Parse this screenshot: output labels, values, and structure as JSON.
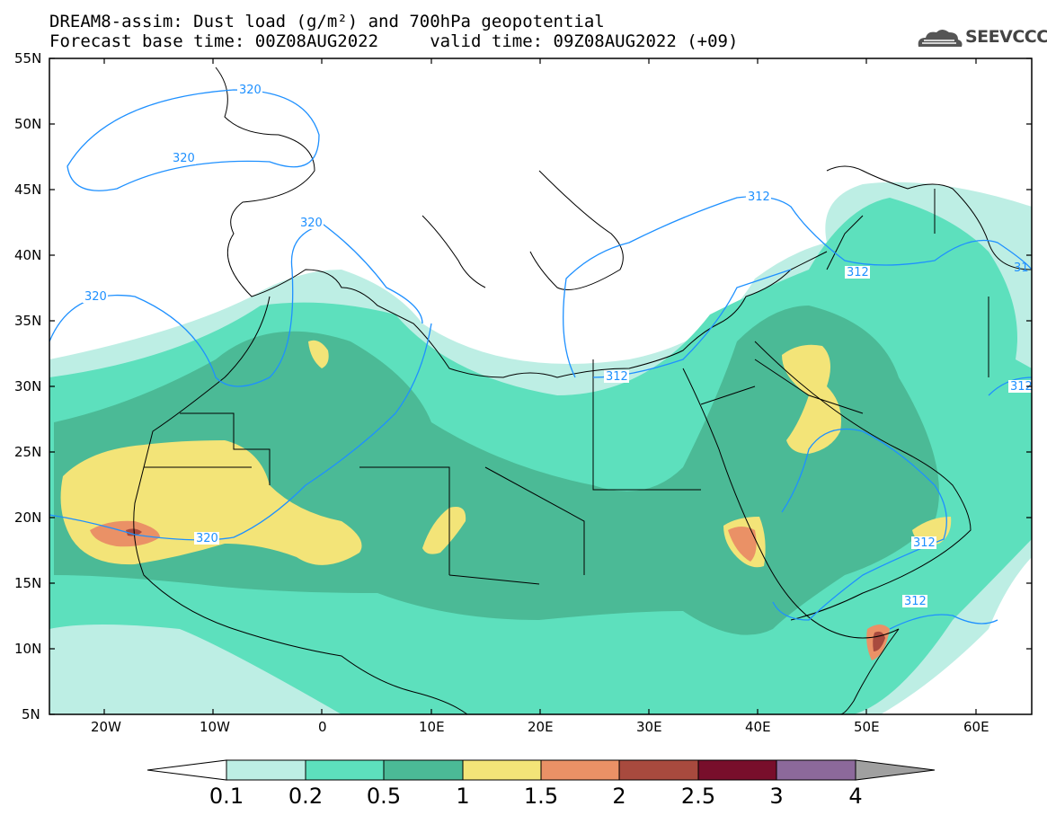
{
  "title": {
    "line1": "DREAM8-assim: Dust load (g/m²) and 700hPa geopotential",
    "line2": "Forecast base time: 00Z08AUG2022     valid time: 09Z08AUG2022 (+09)"
  },
  "logo": {
    "text": "SEEVCCC",
    "icon": "cloud-icon"
  },
  "axes": {
    "lat_labels": [
      "55N",
      "50N",
      "45N",
      "40N",
      "35N",
      "30N",
      "25N",
      "20N",
      "15N",
      "10N",
      "5N"
    ],
    "lon_labels": [
      "20W",
      "10W",
      "0",
      "10E",
      "20E",
      "30E",
      "40E",
      "50E",
      "60E"
    ]
  },
  "contours": {
    "labels": [
      "320",
      "320",
      "320",
      "320",
      "320",
      "312",
      "312",
      "312",
      "312",
      "312",
      "312",
      "31"
    ],
    "color": "#1e90ff"
  },
  "colorbar": {
    "labels": [
      "0.1",
      "0.2",
      "0.5",
      "1",
      "1.5",
      "2",
      "2.5",
      "3",
      "4"
    ],
    "colors": [
      "#ffffff",
      "#bdeee4",
      "#5de0bd",
      "#4bba96",
      "#f3e478",
      "#ea9166",
      "#a84a3e",
      "#780e2b",
      "#8c699b",
      "#a0a0a0"
    ]
  },
  "legend": {
    "dust_colors": {
      "lt01": "#ffffff",
      "c01": "#bdeee4",
      "c02": "#5de0bd",
      "c05": "#4bba96",
      "c1": "#f3e478",
      "c15": "#ea9166",
      "c2": "#a84a3e"
    }
  }
}
